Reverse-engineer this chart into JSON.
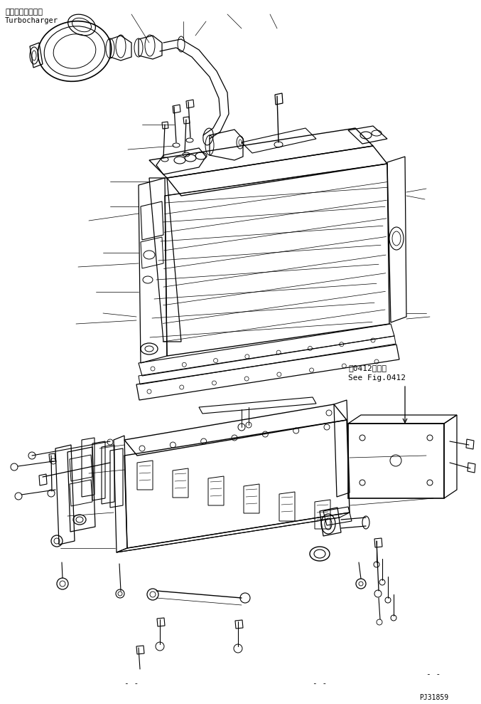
{
  "label_turbocharger_jp": "ターボチャージャ",
  "label_turbocharger_en": "Turbocharger",
  "label_see_fig_jp": "第0412図参照",
  "label_see_fig_en": "See Fig.0412",
  "label_part_no": "PJ31859",
  "bg_color": "#ffffff",
  "line_color": "#000000",
  "fig_width": 6.77,
  "fig_height": 9.89,
  "dpi": 100
}
